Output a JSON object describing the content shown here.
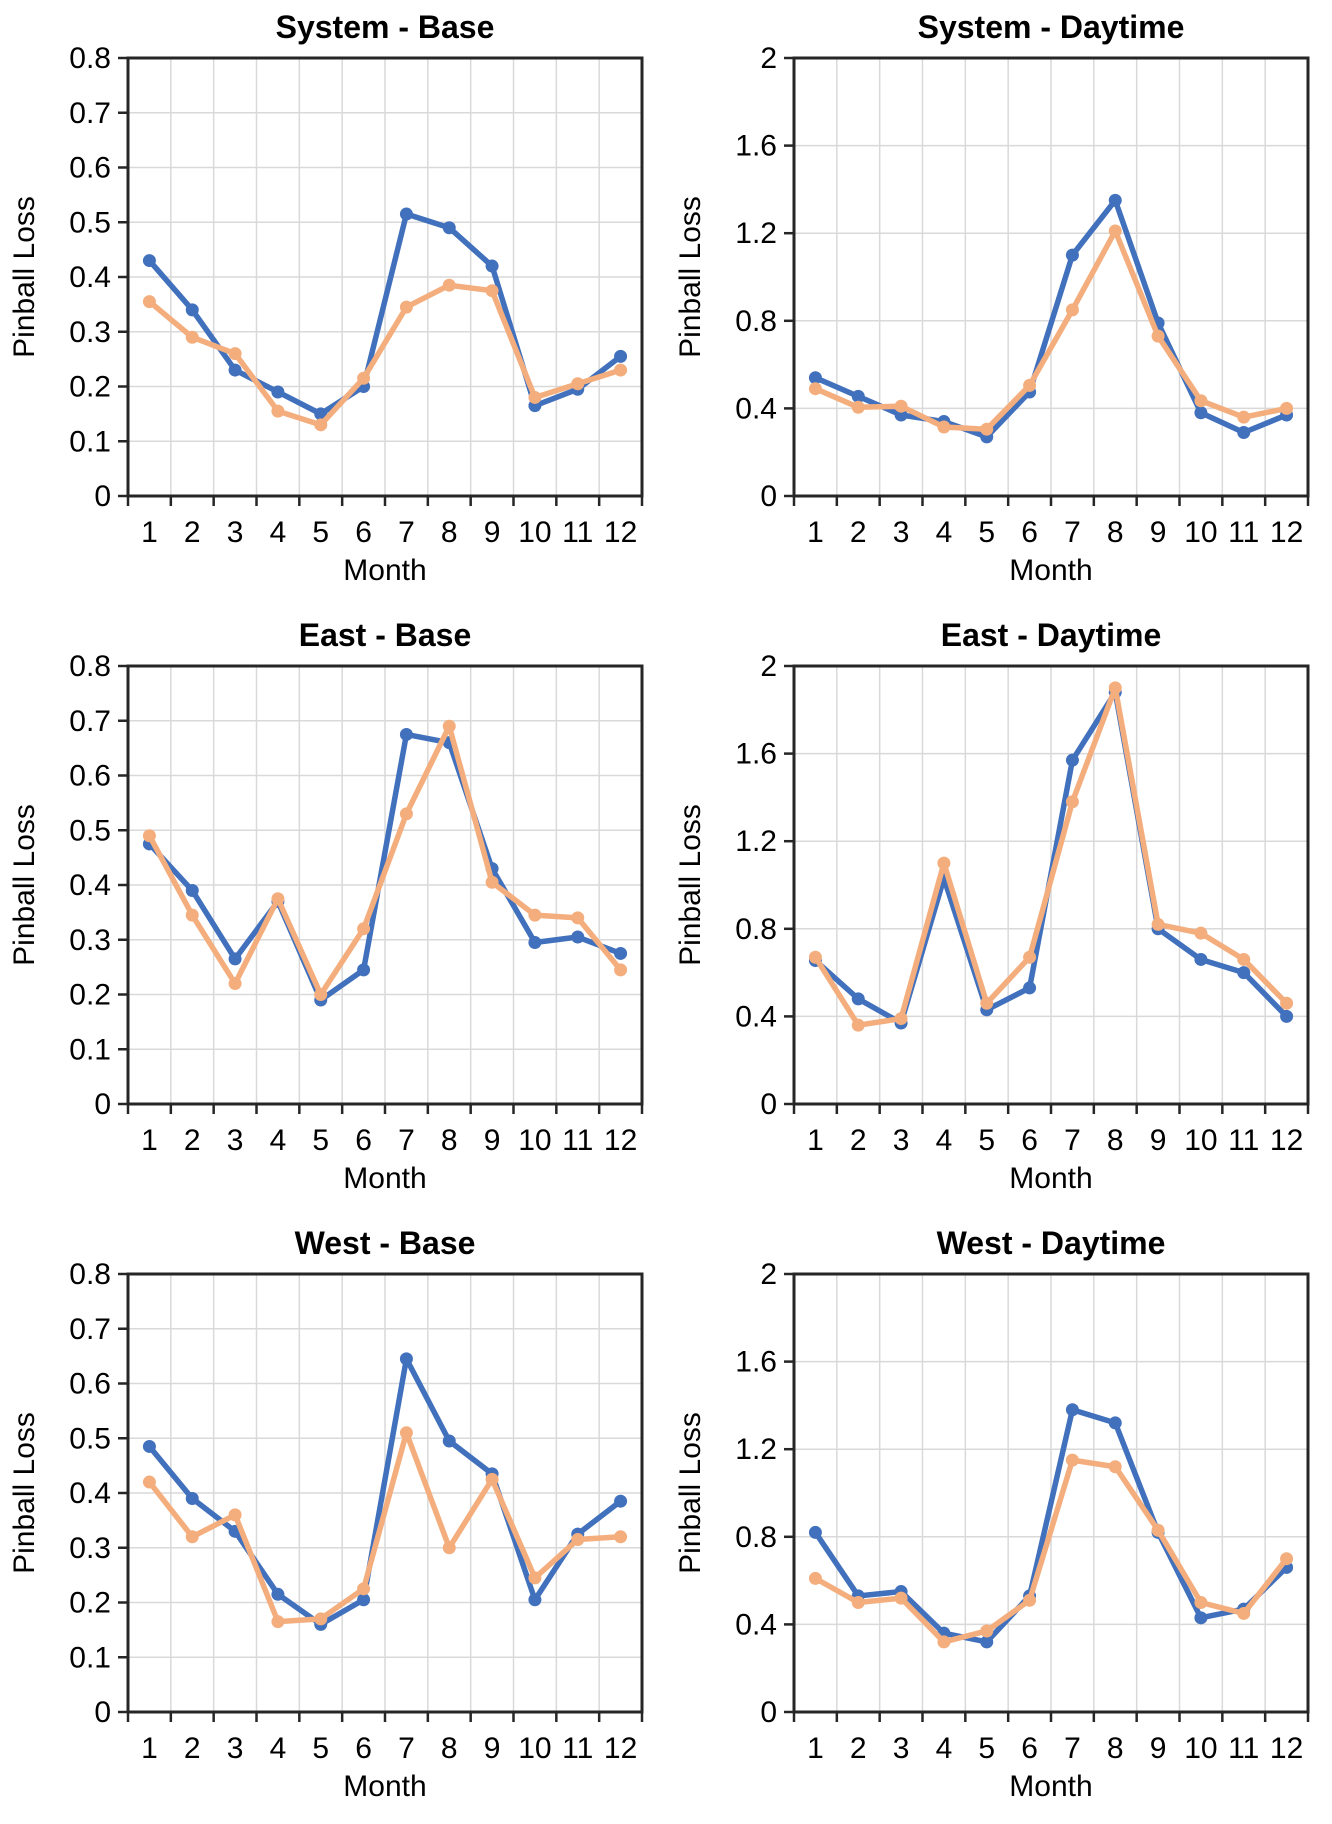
{
  "colors": {
    "series_blue": "#4170BC",
    "series_orange": "#F4AE7E",
    "gridline": "#D9D9D9",
    "axis": "#262626",
    "text": "#000000",
    "background": "#FFFFFF"
  },
  "chart_data": [
    {
      "type": "line",
      "title": "System - Base",
      "xlabel": "Month",
      "ylabel": "Pinball Loss",
      "categories": [
        "1",
        "2",
        "3",
        "4",
        "5",
        "6",
        "7",
        "8",
        "9",
        "10",
        "11",
        "12"
      ],
      "ylim": [
        0,
        0.8
      ],
      "yticks": [
        0,
        0.1,
        0.2,
        0.3,
        0.4,
        0.5,
        0.6,
        0.7,
        0.8
      ],
      "grid": true,
      "legend": "none",
      "series": [
        {
          "id": "series-blue",
          "color": "#4170BC",
          "values": [
            0.43,
            0.34,
            0.23,
            0.19,
            0.15,
            0.2,
            0.515,
            0.49,
            0.42,
            0.165,
            0.195,
            0.255
          ]
        },
        {
          "id": "series-orange",
          "color": "#F4AE7E",
          "values": [
            0.355,
            0.29,
            0.26,
            0.155,
            0.13,
            0.215,
            0.345,
            0.385,
            0.375,
            0.18,
            0.205,
            0.23
          ]
        }
      ]
    },
    {
      "type": "line",
      "title": "System - Daytime",
      "xlabel": "Month",
      "ylabel": "Pinball Loss",
      "categories": [
        "1",
        "2",
        "3",
        "4",
        "5",
        "6",
        "7",
        "8",
        "9",
        "10",
        "11",
        "12"
      ],
      "ylim": [
        0,
        2
      ],
      "yticks": [
        0,
        0.4,
        0.8,
        1.2,
        1.6,
        2
      ],
      "grid": true,
      "legend": "none",
      "series": [
        {
          "id": "series-blue",
          "color": "#4170BC",
          "values": [
            0.54,
            0.455,
            0.37,
            0.34,
            0.27,
            0.475,
            1.1,
            1.35,
            0.79,
            0.38,
            0.29,
            0.37
          ]
        },
        {
          "id": "series-orange",
          "color": "#F4AE7E",
          "values": [
            0.49,
            0.405,
            0.41,
            0.315,
            0.305,
            0.505,
            0.85,
            1.21,
            0.73,
            0.435,
            0.36,
            0.4
          ]
        }
      ]
    },
    {
      "type": "line",
      "title": "East - Base",
      "xlabel": "Month",
      "ylabel": "Pinball Loss",
      "categories": [
        "1",
        "2",
        "3",
        "4",
        "5",
        "6",
        "7",
        "8",
        "9",
        "10",
        "11",
        "12"
      ],
      "ylim": [
        0,
        0.8
      ],
      "yticks": [
        0,
        0.1,
        0.2,
        0.3,
        0.4,
        0.5,
        0.6,
        0.7,
        0.8
      ],
      "grid": true,
      "legend": "none",
      "series": [
        {
          "id": "series-blue",
          "color": "#4170BC",
          "values": [
            0.475,
            0.39,
            0.265,
            0.37,
            0.19,
            0.245,
            0.675,
            0.66,
            0.43,
            0.295,
            0.305,
            0.275
          ]
        },
        {
          "id": "series-orange",
          "color": "#F4AE7E",
          "values": [
            0.49,
            0.345,
            0.22,
            0.375,
            0.2,
            0.32,
            0.53,
            0.69,
            0.405,
            0.345,
            0.34,
            0.245
          ]
        }
      ]
    },
    {
      "type": "line",
      "title": "East - Daytime",
      "xlabel": "Month",
      "ylabel": "Pinball Loss",
      "categories": [
        "1",
        "2",
        "3",
        "4",
        "5",
        "6",
        "7",
        "8",
        "9",
        "10",
        "11",
        "12"
      ],
      "ylim": [
        0,
        2
      ],
      "yticks": [
        0,
        0.4,
        0.8,
        1.2,
        1.6,
        2
      ],
      "grid": true,
      "legend": "none",
      "series": [
        {
          "id": "series-blue",
          "color": "#4170BC",
          "values": [
            0.655,
            0.48,
            0.37,
            1.03,
            0.43,
            0.53,
            1.57,
            1.88,
            0.8,
            0.66,
            0.6,
            0.4
          ]
        },
        {
          "id": "series-orange",
          "color": "#F4AE7E",
          "values": [
            0.67,
            0.36,
            0.39,
            1.1,
            0.46,
            0.67,
            1.38,
            1.9,
            0.82,
            0.78,
            0.66,
            0.46
          ]
        }
      ]
    },
    {
      "type": "line",
      "title": "West - Base",
      "xlabel": "Month",
      "ylabel": "Pinball Loss",
      "categories": [
        "1",
        "2",
        "3",
        "4",
        "5",
        "6",
        "7",
        "8",
        "9",
        "10",
        "11",
        "12"
      ],
      "ylim": [
        0,
        0.8
      ],
      "yticks": [
        0,
        0.1,
        0.2,
        0.3,
        0.4,
        0.5,
        0.6,
        0.7,
        0.8
      ],
      "grid": true,
      "legend": "none",
      "series": [
        {
          "id": "series-blue",
          "color": "#4170BC",
          "values": [
            0.485,
            0.39,
            0.33,
            0.215,
            0.16,
            0.205,
            0.645,
            0.495,
            0.435,
            0.205,
            0.325,
            0.385
          ]
        },
        {
          "id": "series-orange",
          "color": "#F4AE7E",
          "values": [
            0.42,
            0.32,
            0.36,
            0.165,
            0.17,
            0.225,
            0.51,
            0.3,
            0.425,
            0.245,
            0.315,
            0.32
          ]
        }
      ]
    },
    {
      "type": "line",
      "title": "West - Daytime",
      "xlabel": "Month",
      "ylabel": "Pinball Loss",
      "categories": [
        "1",
        "2",
        "3",
        "4",
        "5",
        "6",
        "7",
        "8",
        "9",
        "10",
        "11",
        "12"
      ],
      "ylim": [
        0,
        2
      ],
      "yticks": [
        0,
        0.4,
        0.8,
        1.2,
        1.6,
        2
      ],
      "grid": true,
      "legend": "none",
      "series": [
        {
          "id": "series-blue",
          "color": "#4170BC",
          "values": [
            0.82,
            0.53,
            0.55,
            0.36,
            0.32,
            0.53,
            1.38,
            1.32,
            0.82,
            0.43,
            0.47,
            0.66
          ]
        },
        {
          "id": "series-orange",
          "color": "#F4AE7E",
          "values": [
            0.61,
            0.5,
            0.52,
            0.32,
            0.37,
            0.51,
            1.15,
            1.12,
            0.83,
            0.5,
            0.45,
            0.7
          ]
        }
      ]
    }
  ]
}
